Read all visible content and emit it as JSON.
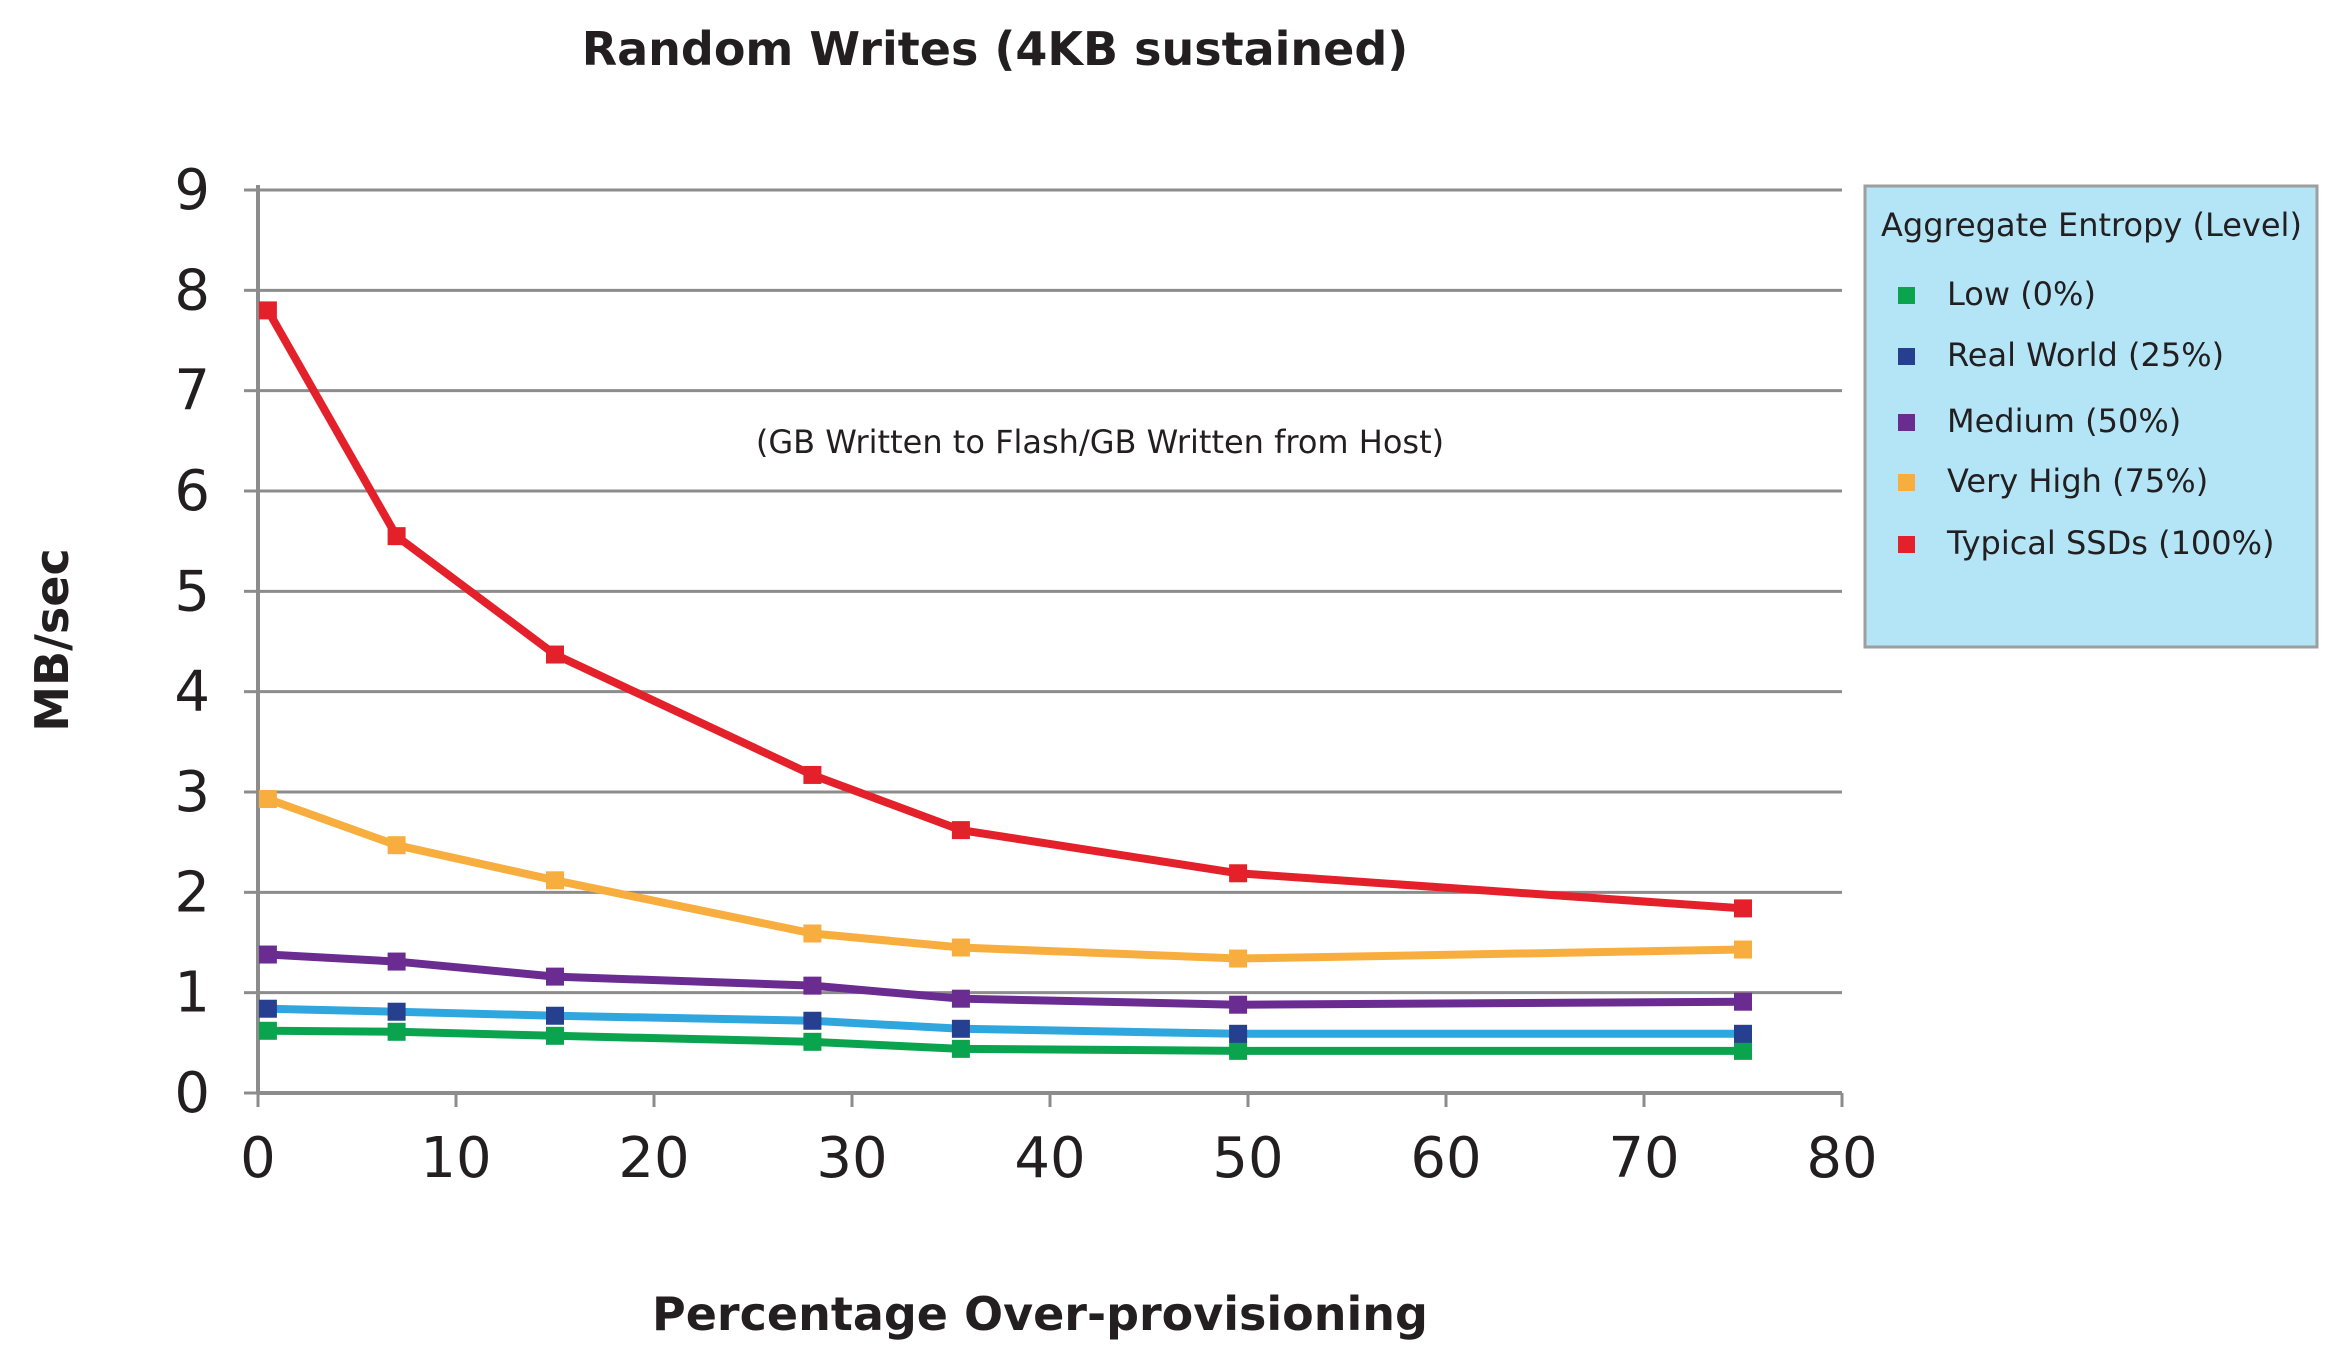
{
  "chart_data": {
    "type": "line",
    "title": "Random Writes (4KB sustained)",
    "xlabel": "Percentage Over-provisioning",
    "ylabel": "MB/sec",
    "xlim": [
      0,
      80
    ],
    "ylim": [
      0,
      9
    ],
    "xticks": [
      0,
      10,
      20,
      30,
      40,
      50,
      60,
      70,
      80
    ],
    "yticks": [
      0,
      1,
      2,
      3,
      4,
      5,
      6,
      7,
      8,
      9
    ],
    "grid": "horizontal",
    "annotation": "(GB Written to Flash/GB Written from Host)",
    "legend": {
      "title": "Aggregate Entropy (Level)",
      "placement": "right",
      "background": "#b3e5f7"
    },
    "x": [
      0.5,
      7,
      15,
      28,
      35.5,
      49.5,
      75
    ],
    "series": [
      {
        "name": "Low (0%)",
        "line_color": "#0aa44e",
        "marker_color": "#0aa44e",
        "values": [
          0.62,
          0.61,
          0.57,
          0.51,
          0.44,
          0.42,
          0.42
        ]
      },
      {
        "name": "Real World (25%)",
        "line_color": "#2fa6de",
        "marker_color": "#263f8e",
        "values": [
          0.84,
          0.81,
          0.77,
          0.72,
          0.64,
          0.59,
          0.59
        ]
      },
      {
        "name": "Medium (50%)",
        "line_color": "#6a2c91",
        "marker_color": "#6a2c91",
        "values": [
          1.38,
          1.31,
          1.16,
          1.07,
          0.94,
          0.88,
          0.91
        ]
      },
      {
        "name": "Very High (75%)",
        "line_color": "#f8ae3f",
        "marker_color": "#f8ae3f",
        "values": [
          2.93,
          2.47,
          2.12,
          1.59,
          1.45,
          1.34,
          1.43
        ]
      },
      {
        "name": "Typical SSDs (100%)",
        "line_color": "#e4202a",
        "marker_color": "#e4202a",
        "values": [
          7.8,
          5.55,
          4.37,
          3.17,
          2.62,
          2.19,
          1.84
        ]
      }
    ]
  }
}
